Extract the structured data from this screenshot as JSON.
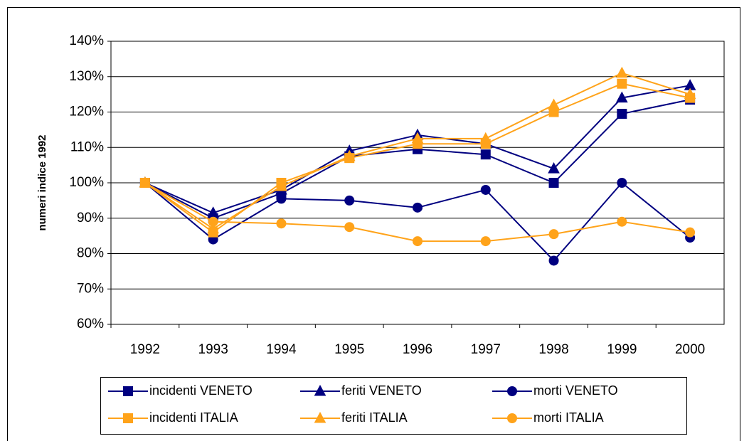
{
  "chart_data": {
    "type": "line",
    "ylabel": "numeri indice 1992",
    "categories": [
      "1992",
      "1993",
      "1994",
      "1995",
      "1996",
      "1997",
      "1998",
      "1999",
      "2000"
    ],
    "ylim": [
      60,
      140
    ],
    "yticks": [
      {
        "value": 60,
        "label": "60%"
      },
      {
        "value": 70,
        "label": "70%"
      },
      {
        "value": 80,
        "label": "80%"
      },
      {
        "value": 90,
        "label": "90%"
      },
      {
        "value": 100,
        "label": "100%"
      },
      {
        "value": 110,
        "label": "110%"
      },
      {
        "value": 120,
        "label": "120%"
      },
      {
        "value": 130,
        "label": "130%"
      },
      {
        "value": 140,
        "label": "140%"
      }
    ],
    "grid": true,
    "series": [
      {
        "name": "incidenti VENETO",
        "color": "#000080",
        "marker": "square",
        "values": [
          100,
          90,
          97,
          107.5,
          109.5,
          108,
          100,
          119.5,
          123.5
        ]
      },
      {
        "name": "feriti VENETO",
        "color": "#000080",
        "marker": "triangle",
        "values": [
          100,
          91.5,
          98,
          109,
          113.5,
          111,
          104,
          124,
          127.5
        ]
      },
      {
        "name": "morti VENETO",
        "color": "#000080",
        "marker": "circle",
        "values": [
          100,
          84,
          95.5,
          95,
          93,
          98,
          78,
          100,
          84.5
        ]
      },
      {
        "name": "incidenti ITALIA",
        "color": "#ffa31a",
        "marker": "square",
        "values": [
          100,
          86,
          100,
          107,
          111,
          111,
          120,
          128,
          124
        ]
      },
      {
        "name": "feriti ITALIA",
        "color": "#ffa31a",
        "marker": "triangle",
        "values": [
          100,
          87,
          99,
          107.5,
          112.5,
          112.5,
          122,
          131,
          125
        ]
      },
      {
        "name": "morti ITALIA",
        "color": "#ffa31a",
        "marker": "circle",
        "values": [
          100,
          89,
          88.5,
          87.5,
          83.5,
          83.5,
          85.5,
          89,
          86
        ]
      }
    ]
  }
}
